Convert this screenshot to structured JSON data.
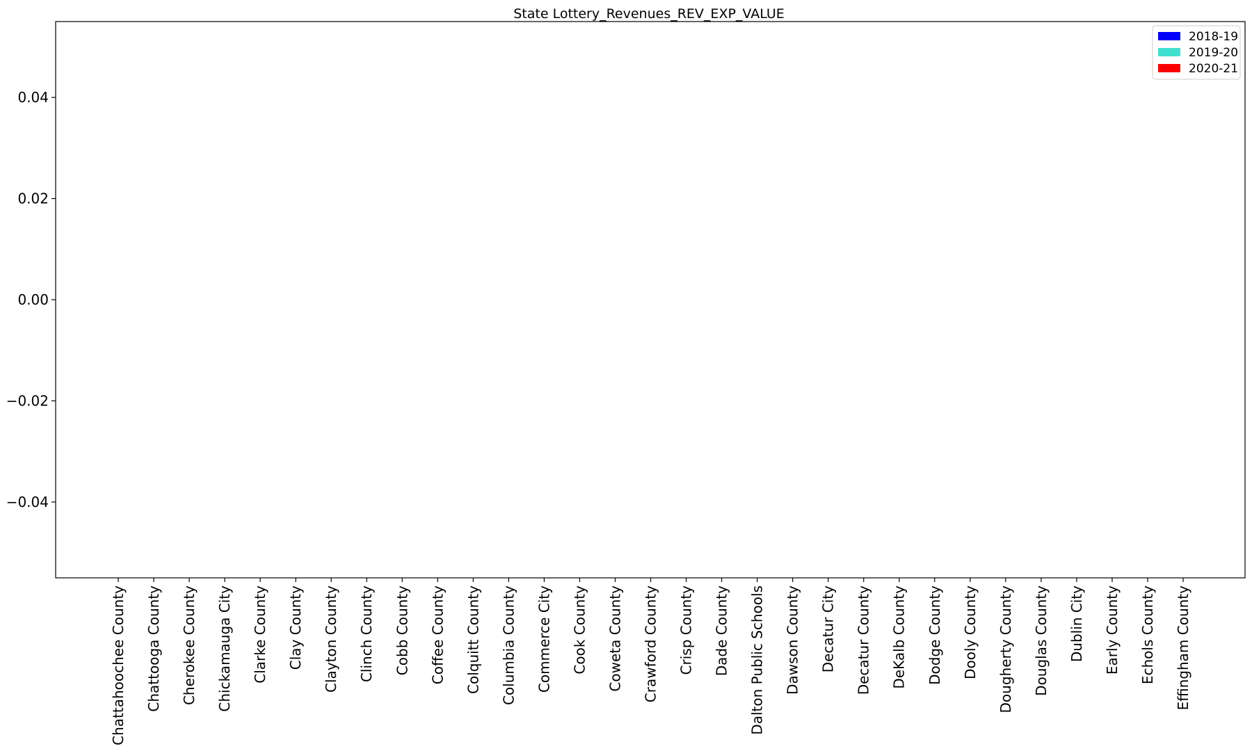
{
  "chart_data": {
    "type": "bar",
    "title": "State Lottery_Revenues_REV_EXP_VALUE",
    "xlabel": "",
    "ylabel": "",
    "ylim": [
      -0.055,
      0.055
    ],
    "yticks": [
      {
        "value": 0.04,
        "label": "0.04"
      },
      {
        "value": 0.02,
        "label": "0.02"
      },
      {
        "value": 0.0,
        "label": "0.00"
      },
      {
        "value": -0.02,
        "label": "−0.02"
      },
      {
        "value": -0.04,
        "label": "−0.04"
      }
    ],
    "categories": [
      "Chattahoochee County",
      "Chattooga County",
      "Cherokee County",
      "Chickamauga City",
      "Clarke County",
      "Clay County",
      "Clayton County",
      "Clinch County",
      "Cobb County",
      "Coffee County",
      "Colquitt County",
      "Columbia County",
      "Commerce City",
      "Cook County",
      "Coweta County",
      "Crawford County",
      "Crisp County",
      "Dade County",
      "Dalton Public Schools",
      "Dawson County",
      "Decatur City",
      "Decatur County",
      "DeKalb County",
      "Dodge County",
      "Dooly County",
      "Dougherty County",
      "Douglas County",
      "Dublin City",
      "Early County",
      "Echols County",
      "Effingham County"
    ],
    "series": [
      {
        "name": "2018-19",
        "color": "#0000ff",
        "values": [
          0,
          0,
          0,
          0,
          0,
          0,
          0,
          0,
          0,
          0,
          0,
          0,
          0,
          0,
          0,
          0,
          0,
          0,
          0,
          0,
          0,
          0,
          0,
          0,
          0,
          0,
          0,
          0,
          0,
          0,
          0
        ]
      },
      {
        "name": "2019-20",
        "color": "#40e0d0",
        "values": [
          0,
          0,
          0,
          0,
          0,
          0,
          0,
          0,
          0,
          0,
          0,
          0,
          0,
          0,
          0,
          0,
          0,
          0,
          0,
          0,
          0,
          0,
          0,
          0,
          0,
          0,
          0,
          0,
          0,
          0,
          0
        ]
      },
      {
        "name": "2020-21",
        "color": "#ff0000",
        "values": [
          0,
          0,
          0,
          0,
          0,
          0,
          0,
          0,
          0,
          0,
          0,
          0,
          0,
          0,
          0,
          0,
          0,
          0,
          0,
          0,
          0,
          0,
          0,
          0,
          0,
          0,
          0,
          0,
          0,
          0,
          0
        ]
      }
    ],
    "legend_position": "top-right",
    "grid": false
  }
}
